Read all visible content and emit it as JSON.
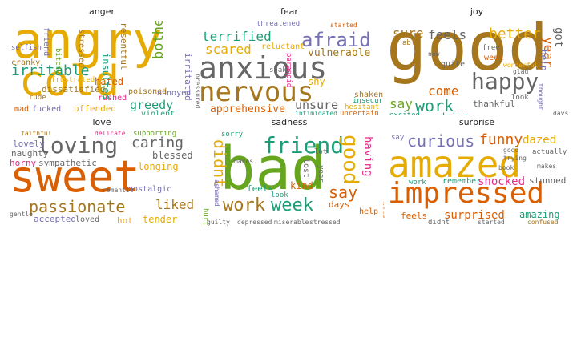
{
  "colors": {
    "amber": "#e6ab02",
    "olive_gold": "#a6761d",
    "orange": "#d95f02",
    "green": "#66a61e",
    "teal": "#1b9e77",
    "purple": "#7570b3",
    "magenta": "#e7298a",
    "gray": "#666666"
  },
  "panels": [
    {
      "title": "anger",
      "words": [
        {
          "text": "angry",
          "color": "#e6ab02"
        },
        {
          "text": "cold",
          "color": "#e6ab02"
        },
        {
          "text": "irritable",
          "color": "#1b9e77"
        },
        {
          "text": "bothered",
          "color": "#66a61e"
        },
        {
          "text": "greedy",
          "color": "#1b9e77"
        },
        {
          "text": "insulted",
          "color": "#1b9e77"
        },
        {
          "text": "offended",
          "color": "#e6ab02"
        },
        {
          "text": "hated",
          "color": "#d95f02"
        },
        {
          "text": "resentful",
          "color": "#a6761d"
        },
        {
          "text": "dissatisfied",
          "color": "#a6761d"
        },
        {
          "text": "violent",
          "color": "#1b9e77"
        },
        {
          "text": "irritated",
          "color": "#7570b3"
        },
        {
          "text": "annoyed",
          "color": "#7570b3"
        },
        {
          "text": "rushed",
          "color": "#e7298a"
        },
        {
          "text": "poisoned",
          "color": "#a6761d"
        },
        {
          "text": "frustrated",
          "color": "#e6ab02"
        },
        {
          "text": "stressed",
          "color": "#a6761d"
        },
        {
          "text": "friend",
          "color": "#7570b3"
        },
        {
          "text": "bitchy",
          "color": "#66a61e"
        },
        {
          "text": "cranky",
          "color": "#a6761d"
        },
        {
          "text": "selfish",
          "color": "#7570b3"
        },
        {
          "text": "mad",
          "color": "#d95f02"
        },
        {
          "text": "fucked",
          "color": "#7570b3"
        },
        {
          "text": "rude",
          "color": "#a6761d"
        }
      ]
    },
    {
      "title": "fear",
      "words": [
        {
          "text": "anxious",
          "color": "#666666"
        },
        {
          "text": "nervous",
          "color": "#a6761d"
        },
        {
          "text": "afraid",
          "color": "#7570b3"
        },
        {
          "text": "terrified",
          "color": "#1b9e77"
        },
        {
          "text": "scared",
          "color": "#e6ab02"
        },
        {
          "text": "vulnerable",
          "color": "#a6761d"
        },
        {
          "text": "apprehensive",
          "color": "#d95f02"
        },
        {
          "text": "unsure",
          "color": "#666666"
        },
        {
          "text": "reluctant",
          "color": "#e6ab02"
        },
        {
          "text": "threatened",
          "color": "#7570b3"
        },
        {
          "text": "shaky",
          "color": "#666666"
        },
        {
          "text": "paranoid",
          "color": "#e7298a"
        },
        {
          "text": "shy",
          "color": "#e6ab02"
        },
        {
          "text": "shaken",
          "color": "#a6761d"
        },
        {
          "text": "hesitant",
          "color": "#e6ab02"
        },
        {
          "text": "insecure",
          "color": "#1b9e77"
        },
        {
          "text": "uncertain",
          "color": "#d95f02"
        },
        {
          "text": "intimidated",
          "color": "#1b9e77"
        },
        {
          "text": "pressured",
          "color": "#666666"
        },
        {
          "text": "started",
          "color": "#d95f02"
        }
      ]
    },
    {
      "title": "joy",
      "words": [
        {
          "text": "good",
          "color": "#a6761d"
        },
        {
          "text": "happy",
          "color": "#666666"
        },
        {
          "text": "work",
          "color": "#1b9e77"
        },
        {
          "text": "feels",
          "color": "#666666"
        },
        {
          "text": "sure",
          "color": "#a6761d"
        },
        {
          "text": "better",
          "color": "#e6ab02"
        },
        {
          "text": "come",
          "color": "#d95f02"
        },
        {
          "text": "say",
          "color": "#66a61e"
        },
        {
          "text": "doing",
          "color": "#1b9e77"
        },
        {
          "text": "year",
          "color": "#d95f02"
        },
        {
          "text": "got",
          "color": "#666666"
        },
        {
          "text": "help",
          "color": "#7570b3"
        },
        {
          "text": "thankful",
          "color": "#666666"
        },
        {
          "text": "quite",
          "color": "#666666"
        },
        {
          "text": "week",
          "color": "#d95f02"
        },
        {
          "text": "able",
          "color": "#a6761d"
        },
        {
          "text": "free",
          "color": "#666666"
        },
        {
          "text": "look",
          "color": "#666666"
        },
        {
          "text": "excited",
          "color": "#1b9e77"
        },
        {
          "text": "days",
          "color": "#666666"
        },
        {
          "text": "thought",
          "color": "#7570b3"
        },
        {
          "text": "wonderful",
          "color": "#e6ab02"
        },
        {
          "text": "new",
          "color": "#666666"
        },
        {
          "text": "glad",
          "color": "#666666"
        }
      ]
    },
    {
      "title": "love",
      "words": [
        {
          "text": "sweet",
          "color": "#d95f02"
        },
        {
          "text": "loving",
          "color": "#666666"
        },
        {
          "text": "passionate",
          "color": "#a6761d"
        },
        {
          "text": "caring",
          "color": "#666666"
        },
        {
          "text": "blessed",
          "color": "#666666"
        },
        {
          "text": "liked",
          "color": "#a6761d"
        },
        {
          "text": "sympathetic",
          "color": "#666666"
        },
        {
          "text": "longing",
          "color": "#e6ab02"
        },
        {
          "text": "lovely",
          "color": "#7570b3"
        },
        {
          "text": "naughty",
          "color": "#666666"
        },
        {
          "text": "horny",
          "color": "#e7298a"
        },
        {
          "text": "tender",
          "color": "#e6ab02"
        },
        {
          "text": "accepted",
          "color": "#7570b3"
        },
        {
          "text": "loved",
          "color": "#666666"
        },
        {
          "text": "hot",
          "color": "#e6ab02"
        },
        {
          "text": "nostalgic",
          "color": "#7570b3"
        },
        {
          "text": "supporting",
          "color": "#66a61e"
        },
        {
          "text": "faithful",
          "color": "#a6761d"
        },
        {
          "text": "romantic",
          "color": "#666666"
        },
        {
          "text": "delicate",
          "color": "#e7298a"
        },
        {
          "text": "gentle",
          "color": "#666666"
        }
      ]
    },
    {
      "title": "sadness",
      "words": [
        {
          "text": "bad",
          "color": "#66a61e"
        },
        {
          "text": "friend",
          "color": "#1b9e77"
        },
        {
          "text": "work",
          "color": "#a6761d"
        },
        {
          "text": "week",
          "color": "#1b9e77"
        },
        {
          "text": "good",
          "color": "#e6ab02"
        },
        {
          "text": "didnt",
          "color": "#e6ab02"
        },
        {
          "text": "say",
          "color": "#d95f02"
        },
        {
          "text": "having",
          "color": "#e7298a"
        },
        {
          "text": "kind",
          "color": "#d95f02"
        },
        {
          "text": "feels",
          "color": "#1b9e77"
        },
        {
          "text": "days",
          "color": "#d95f02"
        },
        {
          "text": "help",
          "color": "#d95f02"
        },
        {
          "text": "look",
          "color": "#1b9e77"
        },
        {
          "text": "lost",
          "color": "#666666"
        },
        {
          "text": "year",
          "color": "#666666"
        },
        {
          "text": "sorry",
          "color": "#1b9e77"
        },
        {
          "text": "hurt",
          "color": "#66a61e"
        },
        {
          "text": "ashamed",
          "color": "#7570b3"
        },
        {
          "text": "stressed",
          "color": "#666666"
        },
        {
          "text": "depressed",
          "color": "#666666"
        },
        {
          "text": "miserable",
          "color": "#666666"
        },
        {
          "text": "lot",
          "color": "#666666"
        },
        {
          "text": "makes",
          "color": "#666666"
        },
        {
          "text": "guilty",
          "color": "#666666"
        }
      ]
    },
    {
      "title": "surprise",
      "words": [
        {
          "text": "amazed",
          "color": "#e6ab02"
        },
        {
          "text": "impressed",
          "color": "#d95f02"
        },
        {
          "text": "curious",
          "color": "#7570b3"
        },
        {
          "text": "funny",
          "color": "#d95f02"
        },
        {
          "text": "shocked",
          "color": "#e7298a"
        },
        {
          "text": "dazed",
          "color": "#e6ab02"
        },
        {
          "text": "surprised",
          "color": "#d95f02"
        },
        {
          "text": "amazing",
          "color": "#1b9e77"
        },
        {
          "text": "stunned",
          "color": "#666666"
        },
        {
          "text": "remember",
          "color": "#1b9e77"
        },
        {
          "text": "actually",
          "color": "#666666"
        },
        {
          "text": "feels",
          "color": "#d95f02"
        },
        {
          "text": "work",
          "color": "#1b9e77"
        },
        {
          "text": "didnt",
          "color": "#666666"
        },
        {
          "text": "say",
          "color": "#7570b3"
        },
        {
          "text": "makes",
          "color": "#666666"
        },
        {
          "text": "book",
          "color": "#666666"
        },
        {
          "text": "good",
          "color": "#666666"
        },
        {
          "text": "weird",
          "color": "#d95f02"
        },
        {
          "text": "confused",
          "color": "#a6761d"
        },
        {
          "text": "started",
          "color": "#666666"
        },
        {
          "text": "trying",
          "color": "#666666"
        }
      ]
    }
  ]
}
